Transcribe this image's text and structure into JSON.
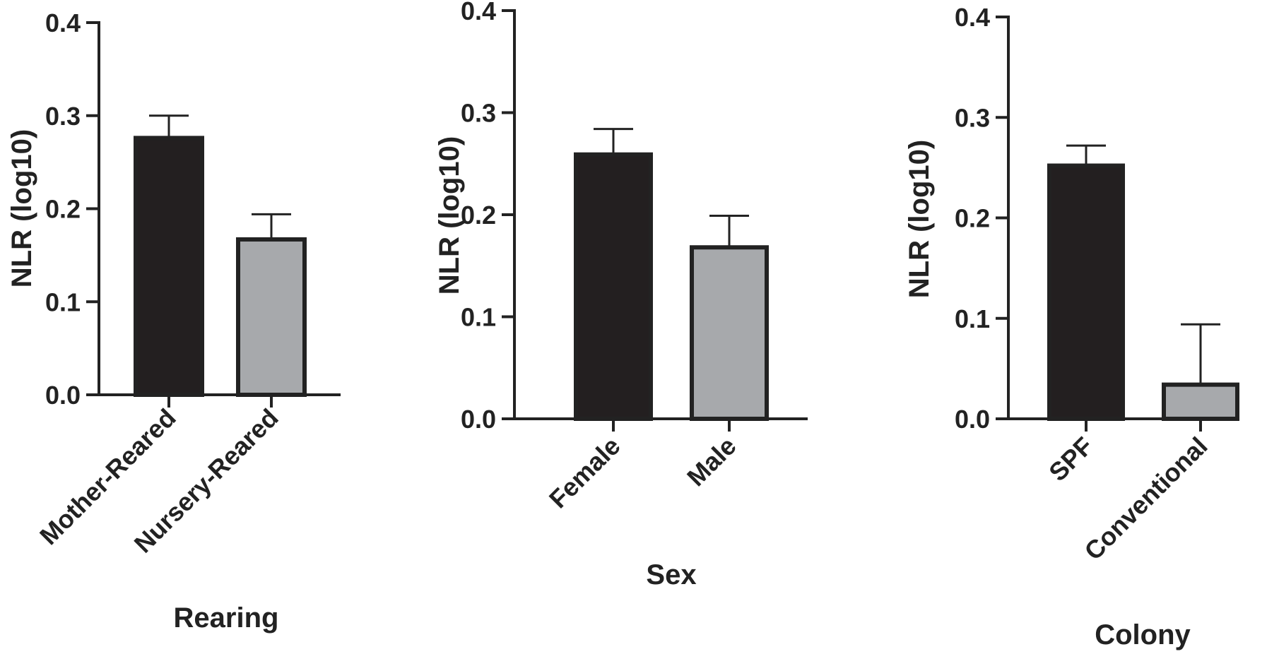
{
  "colors": {
    "axis": "#222222",
    "dark_bar": "#231f20",
    "light_bar": "#a7a9ac",
    "bar_outline": "#222222"
  },
  "chart_data": [
    {
      "type": "bar",
      "categories": [
        "Mother-Reared",
        "Nursery-Reared"
      ],
      "values": [
        0.276,
        0.167
      ],
      "errors": [
        0.024,
        0.027
      ],
      "bar_colors": [
        "#231f20",
        "#a7a9ac"
      ],
      "xlabel": "Rearing",
      "ylabel": "NLR (log10)",
      "ylim": [
        0,
        0.4
      ],
      "yticks": [
        "0.0",
        "0.1",
        "0.2",
        "0.3",
        "0.4"
      ],
      "grid": false
    },
    {
      "type": "bar",
      "categories": [
        "Female",
        "Male"
      ],
      "values": [
        0.259,
        0.168
      ],
      "errors": [
        0.025,
        0.031
      ],
      "bar_colors": [
        "#231f20",
        "#a7a9ac"
      ],
      "xlabel": "Sex",
      "ylabel": "NLR (log10)",
      "ylim": [
        0,
        0.4
      ],
      "yticks": [
        "0.0",
        "0.1",
        "0.2",
        "0.3",
        "0.4"
      ],
      "grid": false
    },
    {
      "type": "bar",
      "categories": [
        "SPF",
        "Conventional"
      ],
      "values": [
        0.252,
        0.034
      ],
      "errors": [
        0.02,
        0.06
      ],
      "bar_colors": [
        "#231f20",
        "#a7a9ac"
      ],
      "xlabel": "Colony",
      "ylabel": "NLR (log10)",
      "ylim": [
        0,
        0.4
      ],
      "yticks": [
        "0.0",
        "0.1",
        "0.2",
        "0.3",
        "0.4"
      ],
      "grid": false
    }
  ]
}
